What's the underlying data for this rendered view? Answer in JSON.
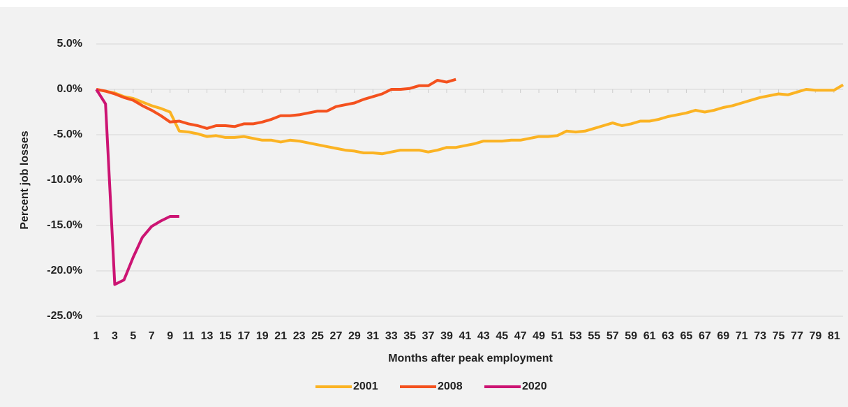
{
  "chart_data": {
    "type": "line",
    "x_label": "Months after peak employment",
    "y_label": "Percent job losses",
    "x": [
      1,
      2,
      3,
      4,
      5,
      6,
      7,
      8,
      9,
      10,
      11,
      12,
      13,
      14,
      15,
      16,
      17,
      18,
      19,
      20,
      21,
      22,
      23,
      24,
      25,
      26,
      27,
      28,
      29,
      30,
      31,
      32,
      33,
      34,
      35,
      36,
      37,
      38,
      39,
      40,
      41,
      42,
      43,
      44,
      45,
      46,
      47,
      48,
      49,
      50,
      51,
      52,
      53,
      54,
      55,
      56,
      57,
      58,
      59,
      60,
      61,
      62,
      63,
      64,
      65,
      66,
      67,
      68,
      69,
      70,
      71,
      72,
      73,
      74,
      75,
      76,
      77,
      78,
      79,
      80,
      81,
      82
    ],
    "xlim": [
      1,
      82
    ],
    "xticks": [
      1,
      3,
      5,
      7,
      9,
      11,
      13,
      15,
      17,
      19,
      21,
      23,
      25,
      27,
      29,
      31,
      33,
      35,
      37,
      39,
      41,
      43,
      45,
      47,
      49,
      51,
      53,
      55,
      57,
      59,
      61,
      63,
      65,
      67,
      69,
      71,
      73,
      75,
      77,
      79,
      81
    ],
    "ylim": [
      -25,
      5
    ],
    "yticks": [
      {
        "value": -25,
        "label": "-25.0%"
      },
      {
        "value": -20,
        "label": "-20.0%"
      },
      {
        "value": -15,
        "label": "-15.0%"
      },
      {
        "value": -10,
        "label": "-10.0%"
      },
      {
        "value": -5,
        "label": "-5.0%"
      },
      {
        "value": 0,
        "label": "0.0%"
      },
      {
        "value": 5,
        "label": "5.0%"
      }
    ],
    "grid": true,
    "legend": "bottom",
    "series": [
      {
        "name": "2001",
        "color": "#fbb323",
        "values": [
          0,
          -0.2,
          -0.4,
          -0.8,
          -1.0,
          -1.4,
          -1.8,
          -2.1,
          -2.5,
          -4.6,
          -4.7,
          -4.9,
          -5.2,
          -5.1,
          -5.3,
          -5.3,
          -5.2,
          -5.4,
          -5.6,
          -5.6,
          -5.8,
          -5.6,
          -5.7,
          -5.9,
          -6.1,
          -6.3,
          -6.5,
          -6.7,
          -6.8,
          -7.0,
          -7.0,
          -7.1,
          -6.9,
          -6.7,
          -6.7,
          -6.7,
          -6.9,
          -6.7,
          -6.4,
          -6.4,
          -6.2,
          -6.0,
          -5.7,
          -5.7,
          -5.7,
          -5.6,
          -5.6,
          -5.4,
          -5.2,
          -5.2,
          -5.1,
          -4.6,
          -4.7,
          -4.6,
          -4.3,
          -4.0,
          -3.7,
          -4.0,
          -3.8,
          -3.5,
          -3.5,
          -3.3,
          -3.0,
          -2.8,
          -2.6,
          -2.3,
          -2.5,
          -2.3,
          -2.0,
          -1.8,
          -1.5,
          -1.2,
          -0.9,
          -0.7,
          -0.5,
          -0.6,
          -0.3,
          0,
          -0.1,
          -0.1,
          -0.1,
          0.5
        ]
      },
      {
        "name": "2008",
        "color": "#f4511e",
        "values": [
          0,
          -0.2,
          -0.5,
          -0.9,
          -1.2,
          -1.8,
          -2.3,
          -2.9,
          -3.6,
          -3.5,
          -3.8,
          -4.0,
          -4.3,
          -4.0,
          -4.0,
          -4.1,
          -3.8,
          -3.8,
          -3.6,
          -3.3,
          -2.9,
          -2.9,
          -2.8,
          -2.6,
          -2.4,
          -2.4,
          -1.9,
          -1.7,
          -1.5,
          -1.1,
          -0.8,
          -0.5,
          0,
          0,
          0.1,
          0.4,
          0.4,
          1.0,
          0.8,
          1.1,
          null,
          null,
          null,
          null,
          null,
          null,
          null,
          null,
          null,
          null,
          null,
          null,
          null,
          null,
          null,
          null,
          null,
          null,
          null,
          null,
          null,
          null,
          null,
          null,
          null,
          null,
          null,
          null,
          null,
          null,
          null,
          null,
          null,
          null,
          null,
          null,
          null,
          null,
          null,
          null,
          null,
          null
        ]
      },
      {
        "name": "2020",
        "color": "#cc1473",
        "values": [
          0,
          -1.6,
          -21.5,
          -21.0,
          -18.5,
          -16.3,
          -15.1,
          -14.5,
          -14.0,
          -14.0,
          null,
          null,
          null,
          null,
          null,
          null,
          null,
          null,
          null,
          null,
          null,
          null,
          null,
          null,
          null,
          null,
          null,
          null,
          null,
          null,
          null,
          null,
          null,
          null,
          null,
          null,
          null,
          null,
          null,
          null,
          null,
          null,
          null,
          null,
          null,
          null,
          null,
          null,
          null,
          null,
          null,
          null,
          null,
          null,
          null,
          null,
          null,
          null,
          null,
          null,
          null,
          null,
          null,
          null,
          null,
          null,
          null,
          null,
          null,
          null,
          null,
          null,
          null,
          null,
          null,
          null,
          null,
          null,
          null,
          null,
          null,
          null
        ]
      }
    ]
  }
}
